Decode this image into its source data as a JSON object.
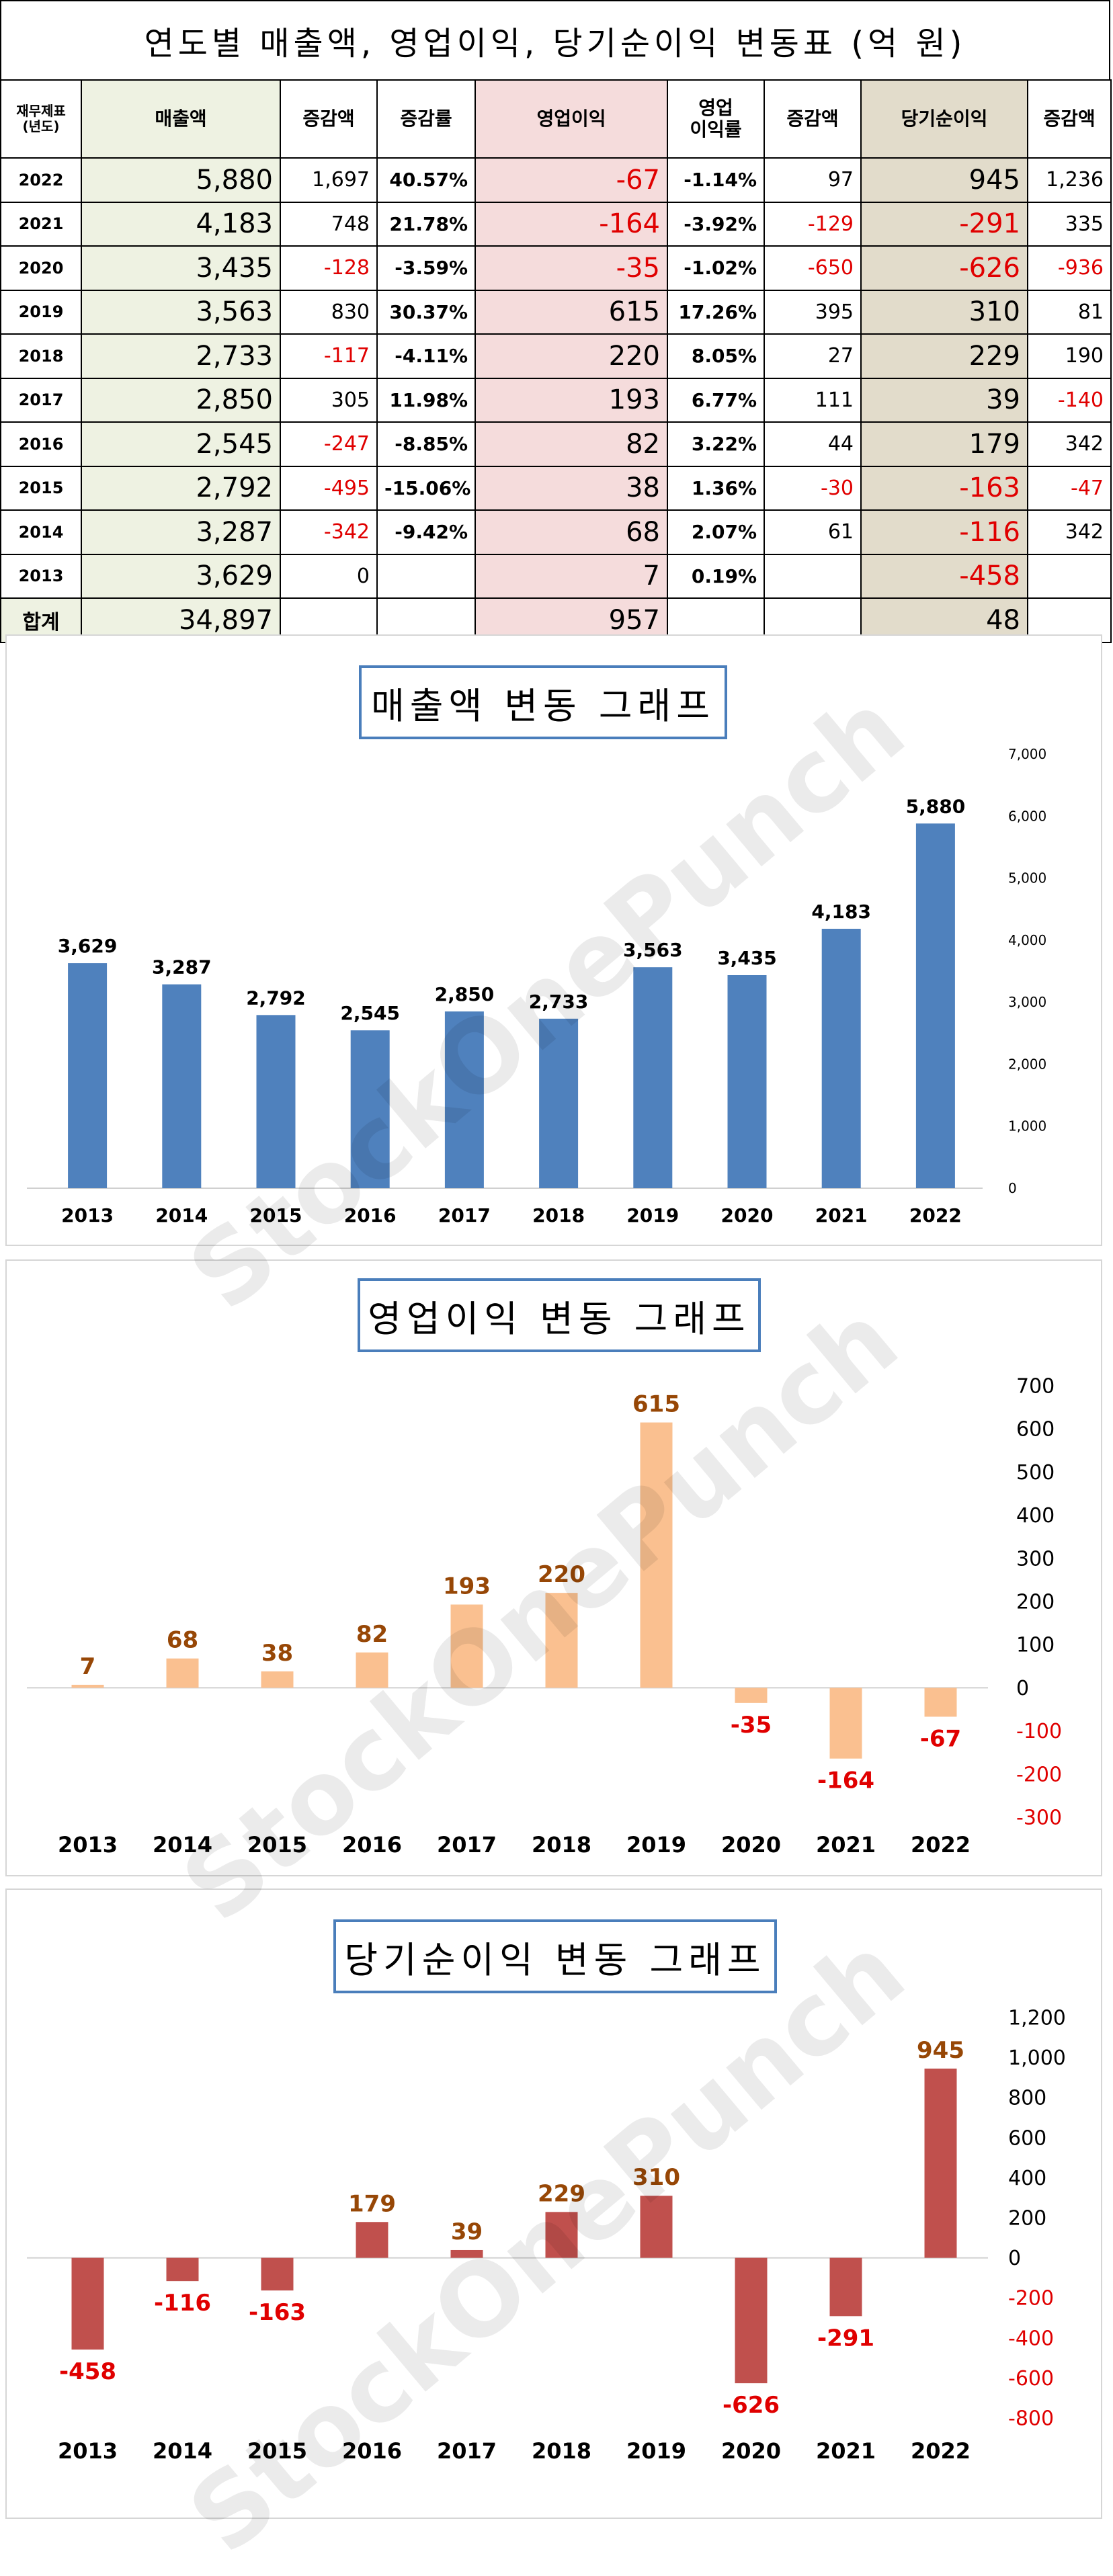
{
  "table": {
    "title": "연도별 매출액, 영업이익, 당기순이익 변동표  (억 원)",
    "headers": {
      "year": "재무제표\n(년도)",
      "sales": "매출액",
      "sales_change": "증감액",
      "sales_rate": "증감률",
      "op": "영업이익",
      "op_margin": "영업\n이익률",
      "op_change": "증감액",
      "net": "당기순이익",
      "net_change": "증감액"
    },
    "rows": [
      {
        "year": "2022",
        "sales": "5,880",
        "sales_change": "1,697",
        "sales_rate": "40.57%",
        "op": "-67",
        "op_margin": "-1.14%",
        "op_change": "97",
        "net": "945",
        "net_change": "1,236"
      },
      {
        "year": "2021",
        "sales": "4,183",
        "sales_change": "748",
        "sales_rate": "21.78%",
        "op": "-164",
        "op_margin": "-3.92%",
        "op_change": "-129",
        "net": "-291",
        "net_change": "335"
      },
      {
        "year": "2020",
        "sales": "3,435",
        "sales_change": "-128",
        "sales_rate": "-3.59%",
        "op": "-35",
        "op_margin": "-1.02%",
        "op_change": "-650",
        "net": "-626",
        "net_change": "-936"
      },
      {
        "year": "2019",
        "sales": "3,563",
        "sales_change": "830",
        "sales_rate": "30.37%",
        "op": "615",
        "op_margin": "17.26%",
        "op_change": "395",
        "net": "310",
        "net_change": "81"
      },
      {
        "year": "2018",
        "sales": "2,733",
        "sales_change": "-117",
        "sales_rate": "-4.11%",
        "op": "220",
        "op_margin": "8.05%",
        "op_change": "27",
        "net": "229",
        "net_change": "190"
      },
      {
        "year": "2017",
        "sales": "2,850",
        "sales_change": "305",
        "sales_rate": "11.98%",
        "op": "193",
        "op_margin": "6.77%",
        "op_change": "111",
        "net": "39",
        "net_change": "-140"
      },
      {
        "year": "2016",
        "sales": "2,545",
        "sales_change": "-247",
        "sales_rate": "-8.85%",
        "op": "82",
        "op_margin": "3.22%",
        "op_change": "44",
        "net": "179",
        "net_change": "342"
      },
      {
        "year": "2015",
        "sales": "2,792",
        "sales_change": "-495",
        "sales_rate": "-15.06%",
        "op": "38",
        "op_margin": "1.36%",
        "op_change": "-30",
        "net": "-163",
        "net_change": "-47"
      },
      {
        "year": "2014",
        "sales": "3,287",
        "sales_change": "-342",
        "sales_rate": "-9.42%",
        "op": "68",
        "op_margin": "2.07%",
        "op_change": "61",
        "net": "-116",
        "net_change": "342"
      },
      {
        "year": "2013",
        "sales": "3,629",
        "sales_change": "0",
        "sales_rate": "",
        "op": "7",
        "op_margin": "0.19%",
        "op_change": "",
        "net": "-458",
        "net_change": ""
      }
    ],
    "total": {
      "label": "합계",
      "sales": "34,897",
      "op": "957",
      "net": "48"
    }
  },
  "colors": {
    "sales_bar": "#4f81bd",
    "op_bar": "#fac090",
    "net_bar": "#c0504d",
    "positive_label": "#974706",
    "negative_label": "#e00000",
    "title_border": "#4a7ebb"
  },
  "watermark": "StockOnePunch",
  "chart_data": [
    {
      "type": "bar",
      "title": "매출액 변동 그래프",
      "categories": [
        "2013",
        "2014",
        "2015",
        "2016",
        "2017",
        "2018",
        "2019",
        "2020",
        "2021",
        "2022"
      ],
      "values": [
        3629,
        3287,
        2792,
        2545,
        2850,
        2733,
        3563,
        3435,
        4183,
        5880
      ],
      "ylim": [
        0,
        7000
      ],
      "yticks": [
        0,
        1000,
        2000,
        3000,
        4000,
        5000,
        6000,
        7000
      ],
      "ytick_labels": [
        "0",
        "1,000",
        "2,000",
        "3,000",
        "4,000",
        "5,000",
        "6,000",
        "7,000"
      ],
      "axis_side": "right",
      "grid": false,
      "legend": "none"
    },
    {
      "type": "bar",
      "title": "영업이익 변동 그래프",
      "categories": [
        "2013",
        "2014",
        "2015",
        "2016",
        "2017",
        "2018",
        "2019",
        "2020",
        "2021",
        "2022"
      ],
      "values": [
        7,
        68,
        38,
        82,
        193,
        220,
        615,
        -35,
        -164,
        -67
      ],
      "ylim": [
        -300,
        700
      ],
      "yticks": [
        -300,
        -200,
        -100,
        0,
        100,
        200,
        300,
        400,
        500,
        600,
        700
      ],
      "ytick_labels": [
        "-300",
        "-200",
        "-100",
        "0",
        "100",
        "200",
        "300",
        "400",
        "500",
        "600",
        "700"
      ],
      "axis_side": "right",
      "grid": false,
      "legend": "none"
    },
    {
      "type": "bar",
      "title": "당기순이익 변동 그래프",
      "categories": [
        "2013",
        "2014",
        "2015",
        "2016",
        "2017",
        "2018",
        "2019",
        "2020",
        "2021",
        "2022"
      ],
      "values": [
        -458,
        -116,
        -163,
        179,
        39,
        229,
        310,
        -626,
        -291,
        945
      ],
      "ylim": [
        -800,
        1200
      ],
      "yticks": [
        -800,
        -600,
        -400,
        -200,
        0,
        200,
        400,
        600,
        800,
        1000,
        1200
      ],
      "ytick_labels": [
        "-800",
        "-600",
        "-400",
        "-200",
        "0",
        "200",
        "400",
        "600",
        "800",
        "1,000",
        "1,200"
      ],
      "axis_side": "right",
      "grid": false,
      "legend": "none"
    }
  ]
}
